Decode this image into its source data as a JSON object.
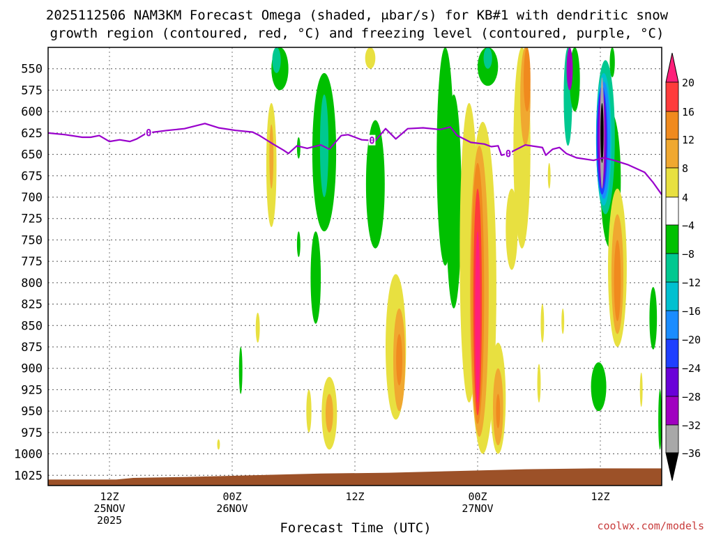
{
  "chart_data": {
    "type": "time-height contour",
    "title_line1": "2025112506 NAM3KM Forecast Omega (shaded, μbar/s) for KB#1 with dendritic snow",
    "title_line2": "growth region (contoured, red, °C) and freezing level (contoured, purple, °C)",
    "xlabel": "Forecast Time (UTC)",
    "credit": "coolwx.com/models",
    "x_range_hours": [
      0,
      36
    ],
    "y_range_mb": [
      525,
      1037
    ],
    "y_ticks": [
      550,
      575,
      600,
      625,
      650,
      675,
      700,
      725,
      750,
      775,
      800,
      825,
      850,
      875,
      900,
      925,
      950,
      975,
      1000,
      1025
    ],
    "x_ticks": [
      {
        "hour": 3.6,
        "line1": "12Z",
        "line2": "25NOV",
        "line3": "2025"
      },
      {
        "hour": 10.8,
        "line1": "00Z",
        "line2": "26NOV",
        "line3": ""
      },
      {
        "hour": 18.0,
        "line1": "12Z",
        "line2": "",
        "line3": ""
      },
      {
        "hour": 25.2,
        "line1": "00Z",
        "line2": "27NOV",
        "line3": ""
      },
      {
        "hour": 32.4,
        "line1": "12Z",
        "line2": "",
        "line3": ""
      }
    ],
    "colorbar": {
      "labels": [
        "20",
        "16",
        "12",
        "8",
        "4",
        "−4",
        "−8",
        "−12",
        "−16",
        "−20",
        "−24",
        "−28",
        "−32",
        "−36"
      ],
      "colors": [
        "#ff1f7a",
        "#ff3b3b",
        "#f08a1e",
        "#f0a830",
        "#e8e040",
        "#ffffff",
        "#00c000",
        "#00c890",
        "#00c0d0",
        "#1a8cff",
        "#1f3fff",
        "#6a00d8",
        "#a000c0",
        "#a8a8a8",
        "#000000"
      ]
    },
    "freezing_level": {
      "label": "0",
      "color": "#9900cc",
      "points": [
        [
          0,
          625
        ],
        [
          1,
          627
        ],
        [
          2,
          630
        ],
        [
          2.5,
          630
        ],
        [
          3,
          628
        ],
        [
          3.6,
          635
        ],
        [
          4.2,
          633
        ],
        [
          4.8,
          635
        ],
        [
          5.2,
          632
        ],
        [
          5.8,
          625
        ],
        [
          7,
          622
        ],
        [
          8,
          620
        ],
        [
          9.2,
          614
        ],
        [
          10,
          619
        ],
        [
          11,
          622
        ],
        [
          12,
          624
        ],
        [
          12.4,
          628
        ],
        [
          13.2,
          638
        ],
        [
          13.8,
          645
        ],
        [
          14.1,
          649
        ],
        [
          14.6,
          640
        ],
        [
          15.2,
          643
        ],
        [
          16,
          639
        ],
        [
          16.5,
          644
        ],
        [
          17.2,
          628
        ],
        [
          17.6,
          627
        ],
        [
          18.4,
          633
        ],
        [
          19.2,
          634
        ],
        [
          19.8,
          620
        ],
        [
          20.4,
          632
        ],
        [
          21.1,
          620
        ],
        [
          22,
          619
        ],
        [
          23,
          621
        ],
        [
          23.6,
          618
        ],
        [
          24,
          628
        ],
        [
          24.8,
          636
        ],
        [
          25.6,
          638
        ],
        [
          26,
          641
        ],
        [
          26.4,
          640
        ],
        [
          26.6,
          651
        ],
        [
          27,
          649
        ],
        [
          28,
          639
        ],
        [
          29,
          642
        ],
        [
          29.2,
          651
        ],
        [
          29.6,
          644
        ],
        [
          30,
          642
        ],
        [
          30.4,
          649
        ],
        [
          31,
          654
        ],
        [
          32,
          657
        ],
        [
          32.6,
          654
        ],
        [
          33.2,
          657
        ],
        [
          34,
          662
        ],
        [
          35,
          671
        ],
        [
          35.5,
          683
        ],
        [
          36,
          697
        ]
      ],
      "label_hours": [
        5.9,
        19.0,
        27.0
      ]
    },
    "ground": {
      "color": "#9c5128",
      "points": [
        [
          0,
          1030
        ],
        [
          4,
          1030
        ],
        [
          5,
          1028
        ],
        [
          8,
          1027
        ],
        [
          12,
          1025
        ],
        [
          16,
          1023
        ],
        [
          20,
          1022
        ],
        [
          24,
          1020
        ],
        [
          28,
          1018
        ],
        [
          32,
          1017
        ],
        [
          36,
          1017
        ]
      ]
    },
    "omega_features": [
      {
        "band": "-4",
        "hour": 13.6,
        "p_top": 525,
        "p_bot": 575,
        "half_width": 0.5
      },
      {
        "band": "-8",
        "hour": 13.4,
        "p_top": 525,
        "p_bot": 555,
        "half_width": 0.25
      },
      {
        "band": "-4",
        "hour": 16.2,
        "p_top": 555,
        "p_bot": 740,
        "half_width": 0.7
      },
      {
        "band": "-8",
        "hour": 16.2,
        "p_top": 580,
        "p_bot": 700,
        "half_width": 0.25
      },
      {
        "band": "-4",
        "hour": 15.7,
        "p_top": 740,
        "p_bot": 848,
        "half_width": 0.3
      },
      {
        "band": "-4",
        "hour": 19.2,
        "p_top": 610,
        "p_bot": 760,
        "half_width": 0.55
      },
      {
        "band": "-4",
        "hour": 23.3,
        "p_top": 525,
        "p_bot": 780,
        "half_width": 0.5
      },
      {
        "band": "-4",
        "hour": 25.8,
        "p_top": 525,
        "p_bot": 570,
        "half_width": 0.6
      },
      {
        "band": "-8",
        "hour": 25.8,
        "p_top": 525,
        "p_bot": 550,
        "half_width": 0.25
      },
      {
        "band": "-4",
        "hour": 23.8,
        "p_top": 580,
        "p_bot": 830,
        "half_width": 0.45
      },
      {
        "band": "-4",
        "hour": 33.0,
        "p_top": 600,
        "p_bot": 760,
        "half_width": 0.6
      },
      {
        "band": "-8",
        "hour": 32.7,
        "p_top": 540,
        "p_bot": 720,
        "half_width": 0.55
      },
      {
        "band": "-12",
        "hour": 32.6,
        "p_top": 555,
        "p_bot": 710,
        "half_width": 0.45
      },
      {
        "band": "-16",
        "hour": 32.6,
        "p_top": 565,
        "p_bot": 702,
        "half_width": 0.38
      },
      {
        "band": "-20",
        "hour": 32.5,
        "p_top": 570,
        "p_bot": 697,
        "half_width": 0.32
      },
      {
        "band": "-24",
        "hour": 32.5,
        "p_top": 575,
        "p_bot": 690,
        "half_width": 0.26
      },
      {
        "band": "-28",
        "hour": 32.5,
        "p_top": 582,
        "p_bot": 680,
        "half_width": 0.2
      },
      {
        "band": "-32",
        "hour": 32.5,
        "p_top": 560,
        "p_bot": 690,
        "half_width": 0.12
      },
      {
        "band": "-36",
        "hour": 32.5,
        "p_top": 590,
        "p_bot": 660,
        "half_width": 0.09
      },
      {
        "band": "-8",
        "hour": 30.5,
        "p_top": 525,
        "p_bot": 640,
        "half_width": 0.25
      },
      {
        "band": "-4",
        "hour": 30.9,
        "p_top": 525,
        "p_bot": 600,
        "half_width": 0.3
      },
      {
        "band": "-28",
        "hour": 30.6,
        "p_top": 525,
        "p_bot": 575,
        "half_width": 0.18
      },
      {
        "band": "-4",
        "hour": 33.1,
        "p_top": 525,
        "p_bot": 560,
        "half_width": 0.15
      },
      {
        "band": "-4",
        "hour": 14.7,
        "p_top": 630,
        "p_bot": 655,
        "half_width": 0.1
      },
      {
        "band": "-4",
        "hour": 14.7,
        "p_top": 740,
        "p_bot": 770,
        "half_width": 0.1
      },
      {
        "band": "-4",
        "hour": 11.3,
        "p_top": 875,
        "p_bot": 930,
        "half_width": 0.1
      },
      {
        "band": "-4",
        "hour": 32.3,
        "p_top": 893,
        "p_bot": 950,
        "half_width": 0.45
      },
      {
        "band": "-4",
        "hour": 35.5,
        "p_top": 805,
        "p_bot": 878,
        "half_width": 0.22
      },
      {
        "band": "-4",
        "hour": 35.9,
        "p_top": 925,
        "p_bot": 995,
        "half_width": 0.1
      },
      {
        "band": "4",
        "hour": 13.1,
        "p_top": 590,
        "p_bot": 735,
        "half_width": 0.3
      },
      {
        "band": "8",
        "hour": 13.1,
        "p_top": 615,
        "p_bot": 690,
        "half_width": 0.12
      },
      {
        "band": "4",
        "hour": 18.9,
        "p_top": 525,
        "p_bot": 550,
        "half_width": 0.3
      },
      {
        "band": "4",
        "hour": 12.3,
        "p_top": 835,
        "p_bot": 870,
        "half_width": 0.12
      },
      {
        "band": "4",
        "hour": 16.5,
        "p_top": 910,
        "p_bot": 995,
        "half_width": 0.45
      },
      {
        "band": "8",
        "hour": 16.5,
        "p_top": 930,
        "p_bot": 975,
        "half_width": 0.22
      },
      {
        "band": "4",
        "hour": 15.3,
        "p_top": 925,
        "p_bot": 975,
        "half_width": 0.15
      },
      {
        "band": "4",
        "hour": 10.0,
        "p_top": 983,
        "p_bot": 995,
        "half_width": 0.08
      },
      {
        "band": "4",
        "hour": 20.4,
        "p_top": 790,
        "p_bot": 960,
        "half_width": 0.6
      },
      {
        "band": "8",
        "hour": 20.6,
        "p_top": 830,
        "p_bot": 950,
        "half_width": 0.35
      },
      {
        "band": "12",
        "hour": 20.6,
        "p_top": 860,
        "p_bot": 920,
        "half_width": 0.18
      },
      {
        "band": "4",
        "hour": 24.7,
        "p_top": 590,
        "p_bot": 940,
        "half_width": 0.55
      },
      {
        "band": "4",
        "hour": 25.5,
        "p_top": 612,
        "p_bot": 1000,
        "half_width": 0.8
      },
      {
        "band": "8",
        "hour": 25.3,
        "p_top": 640,
        "p_bot": 980,
        "half_width": 0.55
      },
      {
        "band": "12",
        "hour": 25.2,
        "p_top": 660,
        "p_bot": 965,
        "half_width": 0.38
      },
      {
        "band": "16",
        "hour": 25.2,
        "p_top": 690,
        "p_bot": 955,
        "half_width": 0.25
      },
      {
        "band": "20",
        "hour": 25.2,
        "p_top": 740,
        "p_bot": 940,
        "half_width": 0.15
      },
      {
        "band": "4",
        "hour": 26.4,
        "p_top": 870,
        "p_bot": 1000,
        "half_width": 0.45
      },
      {
        "band": "8",
        "hour": 26.4,
        "p_top": 900,
        "p_bot": 990,
        "half_width": 0.3
      },
      {
        "band": "12",
        "hour": 26.4,
        "p_top": 930,
        "p_bot": 970,
        "half_width": 0.12
      },
      {
        "band": "4",
        "hour": 27.2,
        "p_top": 690,
        "p_bot": 785,
        "half_width": 0.35
      },
      {
        "band": "4",
        "hour": 27.8,
        "p_top": 525,
        "p_bot": 760,
        "half_width": 0.5
      },
      {
        "band": "8",
        "hour": 28.0,
        "p_top": 525,
        "p_bot": 640,
        "half_width": 0.3
      },
      {
        "band": "12",
        "hour": 28.1,
        "p_top": 525,
        "p_bot": 600,
        "half_width": 0.2
      },
      {
        "band": "4",
        "hour": 33.4,
        "p_top": 690,
        "p_bot": 875,
        "half_width": 0.55
      },
      {
        "band": "8",
        "hour": 33.4,
        "p_top": 720,
        "p_bot": 860,
        "half_width": 0.35
      },
      {
        "band": "12",
        "hour": 33.4,
        "p_top": 750,
        "p_bot": 845,
        "half_width": 0.2
      },
      {
        "band": "4",
        "hour": 29.4,
        "p_top": 660,
        "p_bot": 690,
        "half_width": 0.08
      },
      {
        "band": "4",
        "hour": 29.0,
        "p_top": 825,
        "p_bot": 870,
        "half_width": 0.1
      },
      {
        "band": "4",
        "hour": 30.2,
        "p_top": 830,
        "p_bot": 860,
        "half_width": 0.08
      },
      {
        "band": "4",
        "hour": 28.8,
        "p_top": 895,
        "p_bot": 940,
        "half_width": 0.1
      },
      {
        "band": "4",
        "hour": 34.8,
        "p_top": 905,
        "p_bot": 945,
        "half_width": 0.08
      }
    ]
  }
}
